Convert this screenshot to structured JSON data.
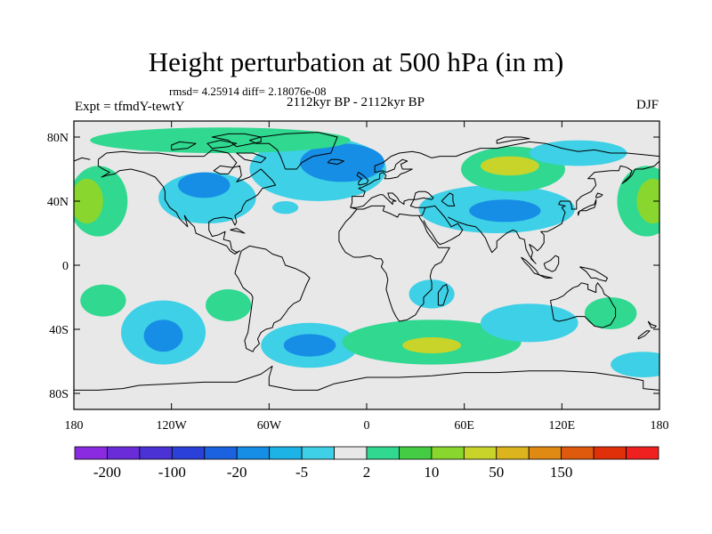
{
  "title": "Height perturbation at 500 hPa (in m)",
  "stats_line": "rmsd= 4.25914  diff= 2.18076e-08",
  "left_label": "Expt = tfmdY-tewtY",
  "center_label": "2112kyr BP - 2112kyr BP",
  "right_label": "DJF",
  "map": {
    "projection": "cylindrical-equidistant",
    "lon_range": [
      -180,
      180
    ],
    "lat_range": [
      -90,
      90
    ],
    "background_color": "#e8e8e8",
    "lat_ticks": [
      {
        "lat": 80,
        "label": "80N"
      },
      {
        "lat": 40,
        "label": "40N"
      },
      {
        "lat": 0,
        "label": "0"
      },
      {
        "lat": -40,
        "label": "40S"
      },
      {
        "lat": -80,
        "label": "80S"
      }
    ],
    "lon_ticks": [
      {
        "lon": -180,
        "label": "180"
      },
      {
        "lon": -120,
        "label": "120W"
      },
      {
        "lon": -60,
        "label": "60W"
      },
      {
        "lon": 0,
        "label": "0"
      },
      {
        "lon": 60,
        "label": "60E"
      },
      {
        "lon": 120,
        "label": "120E"
      },
      {
        "lon": 180,
        "label": "180"
      }
    ]
  },
  "colorbar": {
    "colors": [
      "#8a2be2",
      "#6a2bd8",
      "#4a32d4",
      "#2a40d8",
      "#1a62e0",
      "#168ee6",
      "#1db3e6",
      "#3ed0e6",
      "#e8e8e8",
      "#30d890",
      "#44cc44",
      "#88d62e",
      "#c8d42a",
      "#dcb41e",
      "#e08a14",
      "#e05a0e",
      "#e0300a",
      "#f02020"
    ],
    "labels": [
      {
        "after_index": 0,
        "label": "-200"
      },
      {
        "after_index": 2,
        "label": "-100"
      },
      {
        "after_index": 4,
        "label": "-20"
      },
      {
        "after_index": 6,
        "label": "-5"
      },
      {
        "after_index": 8,
        "label": "2"
      },
      {
        "after_index": 10,
        "label": "10"
      },
      {
        "after_index": 12,
        "label": "50"
      },
      {
        "after_index": 14,
        "label": "150"
      }
    ]
  },
  "anomalies": [
    {
      "lon": -98,
      "lat": 42,
      "rx": 30,
      "ry": 16,
      "color": "#3ed0e6"
    },
    {
      "lon": -100,
      "lat": 50,
      "rx": 16,
      "ry": 8,
      "color": "#168ee6"
    },
    {
      "lon": -30,
      "lat": 60,
      "rx": 42,
      "ry": 20,
      "color": "#3ed0e6"
    },
    {
      "lon": -15,
      "lat": 64,
      "rx": 26,
      "ry": 12,
      "color": "#168ee6"
    },
    {
      "lon": 80,
      "lat": 35,
      "rx": 48,
      "ry": 15,
      "color": "#3ed0e6"
    },
    {
      "lon": 85,
      "lat": 34,
      "rx": 22,
      "ry": 7,
      "color": "#168ee6"
    },
    {
      "lon": 90,
      "lat": 60,
      "rx": 32,
      "ry": 14,
      "color": "#30d890"
    },
    {
      "lon": 88,
      "lat": 62,
      "rx": 18,
      "ry": 6,
      "color": "#c8d42a"
    },
    {
      "lon": -165,
      "lat": 40,
      "rx": 18,
      "ry": 22,
      "color": "#30d890"
    },
    {
      "lon": -172,
      "lat": 40,
      "rx": 10,
      "ry": 14,
      "color": "#88d62e"
    },
    {
      "lon": 172,
      "lat": 40,
      "rx": 18,
      "ry": 22,
      "color": "#30d890"
    },
    {
      "lon": 176,
      "lat": 40,
      "rx": 10,
      "ry": 14,
      "color": "#88d62e"
    },
    {
      "lon": -90,
      "lat": 78,
      "rx": 80,
      "ry": 8,
      "color": "#30d890"
    },
    {
      "lon": 130,
      "lat": 70,
      "rx": 30,
      "ry": 8,
      "color": "#3ed0e6"
    },
    {
      "lon": -125,
      "lat": -42,
      "rx": 26,
      "ry": 20,
      "color": "#3ed0e6"
    },
    {
      "lon": -125,
      "lat": -44,
      "rx": 12,
      "ry": 10,
      "color": "#168ee6"
    },
    {
      "lon": -162,
      "lat": -22,
      "rx": 14,
      "ry": 10,
      "color": "#30d890"
    },
    {
      "lon": -85,
      "lat": -25,
      "rx": 14,
      "ry": 10,
      "color": "#30d890"
    },
    {
      "lon": -35,
      "lat": -50,
      "rx": 30,
      "ry": 14,
      "color": "#3ed0e6"
    },
    {
      "lon": -35,
      "lat": -50,
      "rx": 16,
      "ry": 7,
      "color": "#168ee6"
    },
    {
      "lon": 40,
      "lat": -48,
      "rx": 55,
      "ry": 14,
      "color": "#30d890"
    },
    {
      "lon": 40,
      "lat": -50,
      "rx": 18,
      "ry": 5,
      "color": "#c8d42a"
    },
    {
      "lon": 100,
      "lat": -36,
      "rx": 30,
      "ry": 12,
      "color": "#3ed0e6"
    },
    {
      "lon": 150,
      "lat": -30,
      "rx": 16,
      "ry": 10,
      "color": "#30d890"
    },
    {
      "lon": 40,
      "lat": -18,
      "rx": 14,
      "ry": 9,
      "color": "#3ed0e6"
    },
    {
      "lon": 170,
      "lat": -62,
      "rx": 20,
      "ry": 8,
      "color": "#3ed0e6"
    },
    {
      "lon": -50,
      "lat": 36,
      "rx": 8,
      "ry": 4,
      "color": "#3ed0e6"
    }
  ]
}
